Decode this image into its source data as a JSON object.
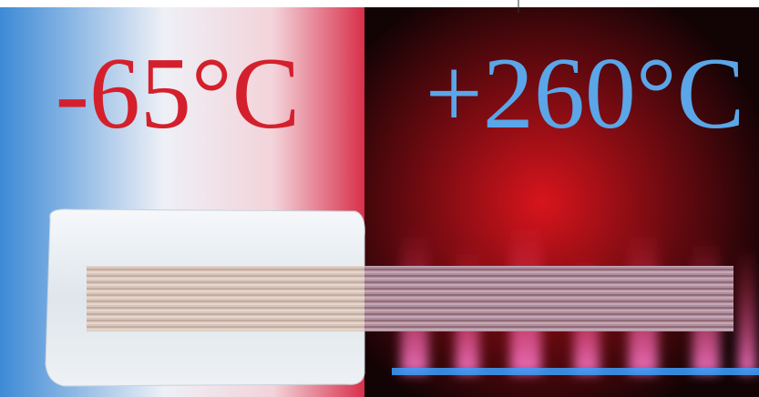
{
  "left_label": "-65°C",
  "right_label": "+260°C"
}
